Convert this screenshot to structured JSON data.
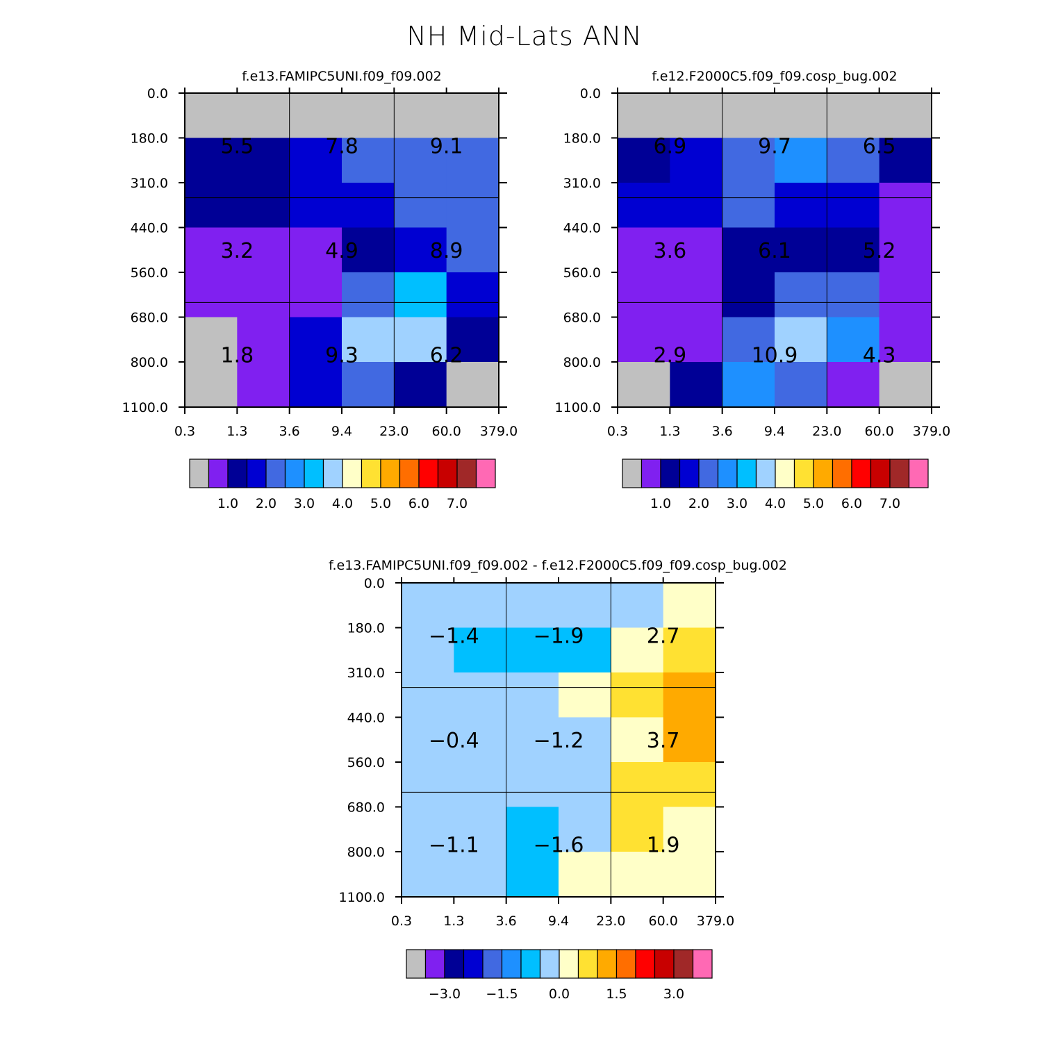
{
  "title": "NH Mid-Lats ANN",
  "chart_data": [
    {
      "type": "heatmap",
      "id": "left",
      "title": "f.e13.FAMIPC5UNI.f09_f09.002",
      "x_ticks": [
        "0.3",
        "1.3",
        "3.6",
        "9.4",
        "23.0",
        "60.0",
        "379.0"
      ],
      "y_ticks": [
        "0.0",
        "180.0",
        "310.0",
        "440.0",
        "560.0",
        "680.0",
        "800.0",
        "1100.0"
      ],
      "cells": [
        [
          0,
          0,
          0,
          0,
          0,
          0
        ],
        [
          2,
          2,
          3,
          4,
          4,
          4
        ],
        [
          2,
          2,
          3,
          3,
          4,
          4
        ],
        [
          1,
          1,
          1,
          2,
          3,
          4
        ],
        [
          1,
          1,
          1,
          4,
          6,
          3
        ],
        [
          0,
          1,
          3,
          7,
          7,
          2
        ],
        [
          0,
          1,
          3,
          4,
          2,
          0
        ]
      ],
      "totals": [
        {
          "row": 0,
          "col": 0,
          "text": "5.5"
        },
        {
          "row": 0,
          "col": 1,
          "text": "7.8"
        },
        {
          "row": 0,
          "col": 2,
          "text": "9.1"
        },
        {
          "row": 1,
          "col": 0,
          "text": "3.2"
        },
        {
          "row": 1,
          "col": 1,
          "text": "4.9"
        },
        {
          "row": 1,
          "col": 2,
          "text": "8.9"
        },
        {
          "row": 2,
          "col": 0,
          "text": "1.8"
        },
        {
          "row": 2,
          "col": 1,
          "text": "9.3"
        },
        {
          "row": 2,
          "col": 2,
          "text": "6.2"
        }
      ],
      "colorbar": {
        "colors": [
          "#c0c0c0",
          "#8020f0",
          "#000096",
          "#0000d2",
          "#4169e1",
          "#1e90ff",
          "#00bfff",
          "#a0d2ff",
          "#ffffc8",
          "#ffe132",
          "#ffaa00",
          "#ff6e00",
          "#ff0000",
          "#c80000",
          "#a02828",
          "#ff69b4"
        ],
        "labels": [
          "1.0",
          "2.0",
          "3.0",
          "4.0",
          "5.0",
          "6.0",
          "7.0"
        ]
      }
    },
    {
      "type": "heatmap",
      "id": "right",
      "title": "f.e12.F2000C5.f09_f09.cosp_bug.002",
      "x_ticks": [
        "0.3",
        "1.3",
        "3.6",
        "9.4",
        "23.0",
        "60.0",
        "379.0"
      ],
      "y_ticks": [
        "0.0",
        "180.0",
        "310.0",
        "440.0",
        "560.0",
        "680.0",
        "800.0",
        "1100.0"
      ],
      "cells": [
        [
          0,
          0,
          0,
          0,
          0,
          0
        ],
        [
          2,
          3,
          4,
          5,
          4,
          2
        ],
        [
          3,
          3,
          4,
          3,
          3,
          1
        ],
        [
          1,
          1,
          2,
          2,
          2,
          1
        ],
        [
          1,
          1,
          2,
          4,
          4,
          1
        ],
        [
          1,
          1,
          4,
          7,
          5,
          1
        ],
        [
          0,
          2,
          5,
          4,
          1,
          0
        ]
      ],
      "totals": [
        {
          "row": 0,
          "col": 0,
          "text": "6.9"
        },
        {
          "row": 0,
          "col": 1,
          "text": "9.7"
        },
        {
          "row": 0,
          "col": 2,
          "text": "6.5"
        },
        {
          "row": 1,
          "col": 0,
          "text": "3.6"
        },
        {
          "row": 1,
          "col": 1,
          "text": "6.1"
        },
        {
          "row": 1,
          "col": 2,
          "text": "5.2"
        },
        {
          "row": 2,
          "col": 0,
          "text": "2.9"
        },
        {
          "row": 2,
          "col": 1,
          "text": "10.9"
        },
        {
          "row": 2,
          "col": 2,
          "text": "4.3"
        }
      ],
      "colorbar": {
        "colors": [
          "#c0c0c0",
          "#8020f0",
          "#000096",
          "#0000d2",
          "#4169e1",
          "#1e90ff",
          "#00bfff",
          "#a0d2ff",
          "#ffffc8",
          "#ffe132",
          "#ffaa00",
          "#ff6e00",
          "#ff0000",
          "#c80000",
          "#a02828",
          "#ff69b4"
        ],
        "labels": [
          "1.0",
          "2.0",
          "3.0",
          "4.0",
          "5.0",
          "6.0",
          "7.0"
        ]
      }
    },
    {
      "type": "heatmap",
      "id": "diff",
      "title": "f.e13.FAMIPC5UNI.f09_f09.002 - f.e12.F2000C5.f09_f09.cosp_bug.002",
      "x_ticks": [
        "0.3",
        "1.3",
        "3.6",
        "9.4",
        "23.0",
        "60.0",
        "379.0"
      ],
      "y_ticks": [
        "0.0",
        "180.0",
        "310.0",
        "440.0",
        "560.0",
        "680.0",
        "800.0",
        "1100.0"
      ],
      "cells": [
        [
          7,
          7,
          7,
          7,
          7,
          8
        ],
        [
          7,
          6,
          6,
          6,
          8,
          9
        ],
        [
          7,
          7,
          7,
          8,
          9,
          10
        ],
        [
          7,
          7,
          7,
          7,
          8,
          10
        ],
        [
          7,
          7,
          7,
          7,
          9,
          9
        ],
        [
          7,
          7,
          6,
          7,
          9,
          8
        ],
        [
          7,
          7,
          6,
          8,
          8,
          8
        ]
      ],
      "totals": [
        {
          "row": 0,
          "col": 0,
          "text": "-1.4"
        },
        {
          "row": 0,
          "col": 1,
          "text": "-1.9"
        },
        {
          "row": 0,
          "col": 2,
          "text": "2.7"
        },
        {
          "row": 1,
          "col": 0,
          "text": "-0.4"
        },
        {
          "row": 1,
          "col": 1,
          "text": "-1.2"
        },
        {
          "row": 1,
          "col": 2,
          "text": "3.7"
        },
        {
          "row": 2,
          "col": 0,
          "text": "-1.1"
        },
        {
          "row": 2,
          "col": 1,
          "text": "-1.6"
        },
        {
          "row": 2,
          "col": 2,
          "text": "1.9"
        }
      ],
      "colorbar": {
        "colors": [
          "#c0c0c0",
          "#8020f0",
          "#000096",
          "#0000d2",
          "#4169e1",
          "#1e90ff",
          "#00bfff",
          "#a0d2ff",
          "#ffffc8",
          "#ffe132",
          "#ffaa00",
          "#ff6e00",
          "#ff0000",
          "#c80000",
          "#a02828",
          "#ff69b4"
        ],
        "labels": [
          "-3.0",
          "-1.5",
          "0.0",
          "1.5",
          "3.0"
        ]
      }
    }
  ]
}
